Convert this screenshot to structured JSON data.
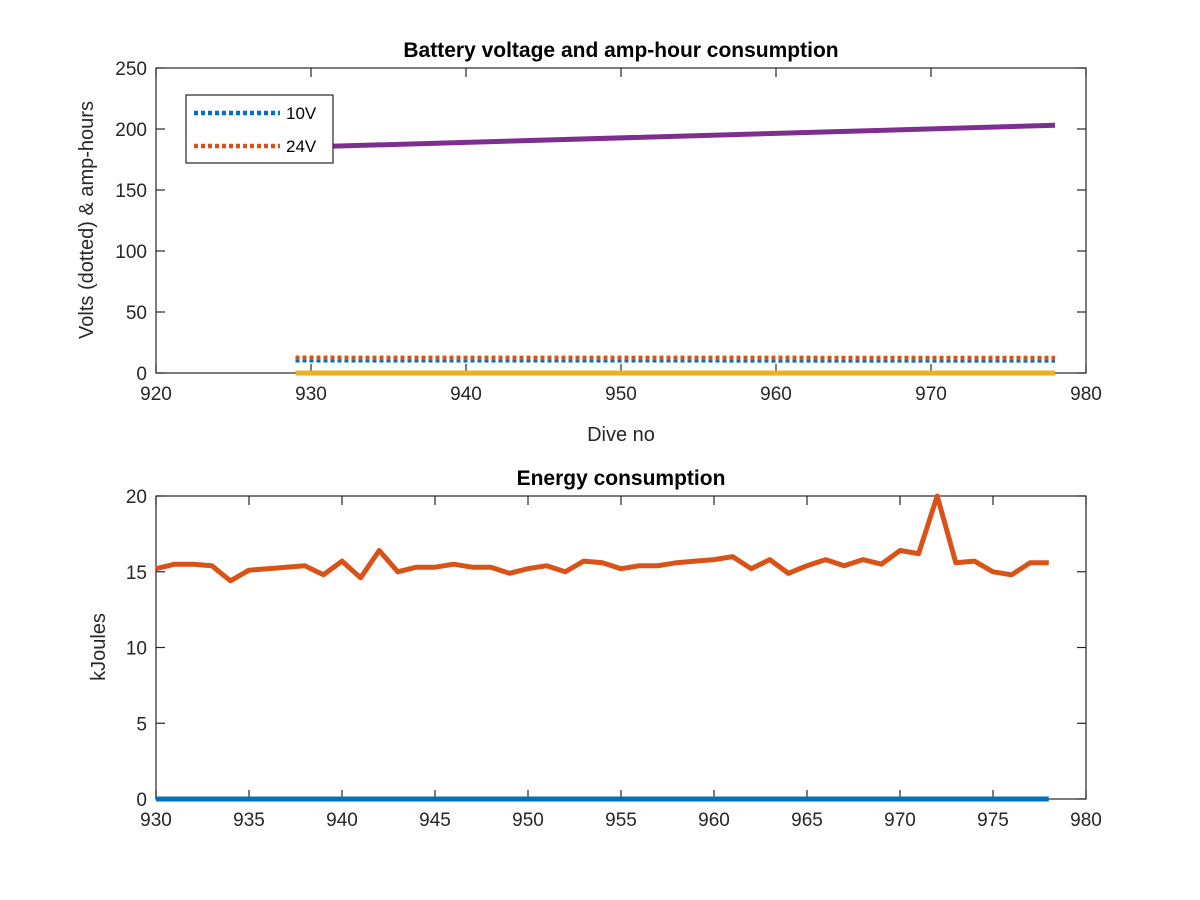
{
  "chart_data": [
    {
      "type": "line",
      "title": "Battery voltage and amp-hour consumption",
      "xlabel": "Dive no",
      "ylabel": "Volts (dotted) & amp-hours",
      "xlim": [
        920,
        980
      ],
      "ylim": [
        0,
        250
      ],
      "xticks": [
        920,
        930,
        940,
        950,
        960,
        970,
        980
      ],
      "yticks": [
        0,
        50,
        100,
        150,
        200,
        250
      ],
      "grid": false,
      "legend": "top-left",
      "series": [
        {
          "name": "10V",
          "style": "dotted",
          "color": "#0072BD",
          "x": [
            929,
            978
          ],
          "y": [
            10.5,
            10.3
          ]
        },
        {
          "name": "24V",
          "style": "dotted",
          "color": "#D95319",
          "x": [
            929,
            978
          ],
          "y": [
            12.5,
            12.3
          ]
        },
        {
          "style": "solid",
          "color": "#EDB120",
          "x": [
            929,
            978
          ],
          "y": [
            0,
            0
          ]
        },
        {
          "style": "solid",
          "color": "#7E2F8E",
          "x": [
            929,
            978
          ],
          "y": [
            185,
            203
          ]
        }
      ]
    },
    {
      "type": "line",
      "title": "Energy consumption",
      "xlabel": "",
      "ylabel": "kJoules",
      "xlim": [
        930,
        980
      ],
      "ylim": [
        0,
        20
      ],
      "xticks": [
        930,
        935,
        940,
        945,
        950,
        955,
        960,
        965,
        970,
        975,
        980
      ],
      "yticks": [
        0,
        5,
        10,
        15,
        20
      ],
      "grid": false,
      "series": [
        {
          "style": "solid",
          "color": "#0072BD",
          "x": [
            930,
            978
          ],
          "y": [
            0,
            0
          ]
        },
        {
          "style": "solid",
          "color": "#D95319",
          "x": [
            930,
            931,
            932,
            933,
            934,
            935,
            936,
            937,
            938,
            939,
            940,
            941,
            942,
            943,
            944,
            945,
            946,
            947,
            948,
            949,
            950,
            951,
            952,
            953,
            954,
            955,
            956,
            957,
            958,
            959,
            960,
            961,
            962,
            963,
            964,
            965,
            966,
            967,
            968,
            969,
            970,
            971,
            972,
            973,
            974,
            975,
            976,
            977,
            978
          ],
          "y": [
            15.2,
            15.5,
            15.5,
            15.4,
            14.4,
            15.1,
            15.2,
            15.3,
            15.4,
            14.8,
            15.7,
            14.6,
            16.4,
            15.0,
            15.3,
            15.3,
            15.5,
            15.3,
            15.3,
            14.9,
            15.2,
            15.4,
            15.0,
            15.7,
            15.6,
            15.2,
            15.4,
            15.4,
            15.6,
            15.7,
            15.8,
            16.0,
            15.2,
            15.8,
            14.9,
            15.4,
            15.8,
            15.4,
            15.8,
            15.5,
            16.4,
            16.2,
            20.0,
            15.6,
            15.7,
            15.0,
            14.8,
            15.6,
            15.6
          ]
        }
      ]
    }
  ]
}
